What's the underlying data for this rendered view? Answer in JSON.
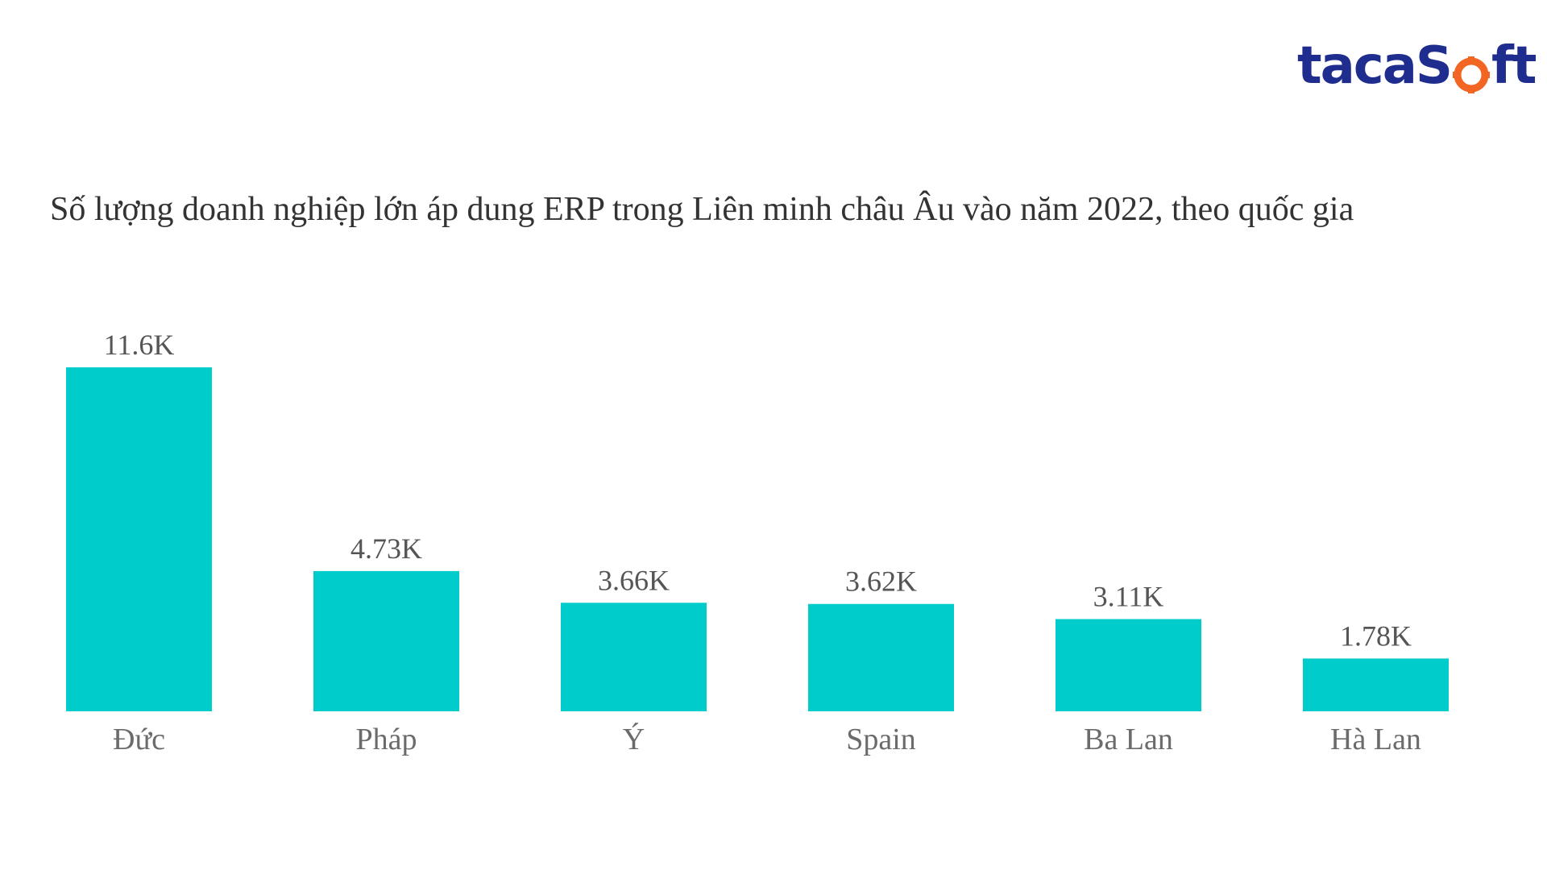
{
  "logo": {
    "text_left": "taca",
    "text_s": "S",
    "text_o": "o",
    "text_right": "ft",
    "color_primary": "#1f2d8f",
    "color_accent": "#f26522"
  },
  "chart_data": {
    "type": "bar",
    "title": "Số lượng doanh nghiệp lớn áp dung ERP trong Liên minh châu Âu vào năm 2022, theo quốc gia",
    "categories": [
      "Đức",
      "Pháp",
      "Ý",
      "Spain",
      "Ba Lan",
      "Hà Lan"
    ],
    "values": [
      11600,
      4730,
      3660,
      3620,
      3110,
      1780
    ],
    "value_labels": [
      "11.6K",
      "4.73K",
      "3.66K",
      "3.62K",
      "3.11K",
      "1.78K"
    ],
    "bar_color": "#00cccc",
    "ylim": [
      0,
      11600
    ],
    "grid": false,
    "xlabel": "",
    "ylabel": ""
  }
}
